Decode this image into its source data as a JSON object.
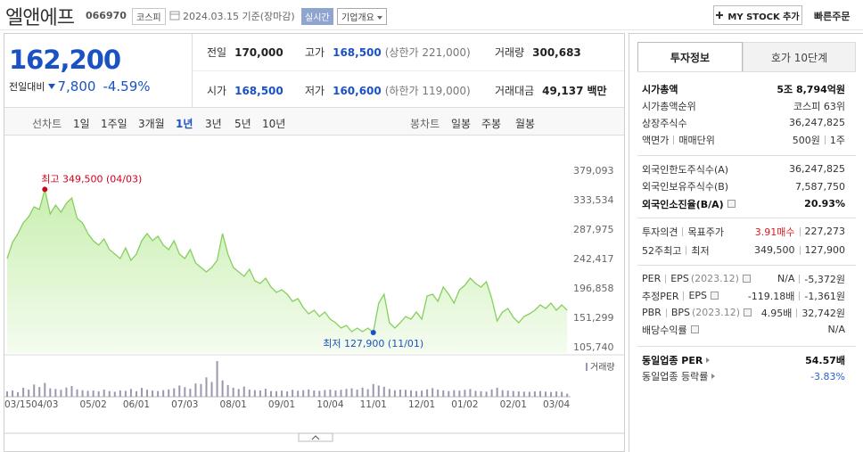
{
  "header": {
    "name": "엘앤에프",
    "code": "066970",
    "market": "코스피",
    "date": "2024.03.15",
    "basis": "기준(장마감)",
    "realtime": "실시간",
    "overview": "기업개요",
    "my_stock": "MY STOCK 추가",
    "quick_order": "빠른주문"
  },
  "quote": {
    "price": "162,200",
    "change_label": "전일대비",
    "change": "7,800",
    "change_rate": "-4.59%",
    "color": "#1a52c4",
    "stats": [
      {
        "label": "전일",
        "value": "170,000"
      },
      {
        "label": "고가",
        "value": "168,500",
        "note": "(상한가 221,000)",
        "color": "#1a52c4"
      },
      {
        "label": "거래량",
        "value": "300,683"
      },
      {
        "label": "시가",
        "value": "168,500",
        "color": "#1a52c4"
      },
      {
        "label": "저가",
        "value": "160,600",
        "note": "(하한가 119,000)",
        "color": "#1a52c4"
      },
      {
        "label": "거래대금",
        "value": "49,137",
        "unit": "백만"
      }
    ]
  },
  "chart_tabs": {
    "line_label": "선차트",
    "periods": [
      "1일",
      "1주일",
      "3개월",
      "1년",
      "3년",
      "5년",
      "10년"
    ],
    "active": 3,
    "candle_label": "봉차트",
    "candle_periods": [
      "일봉",
      "주봉",
      "월봉"
    ]
  },
  "chart_data": {
    "type": "area",
    "color": "#86cf5e",
    "categories": [
      "03/15",
      null,
      null,
      null,
      null,
      null,
      null,
      "04/03",
      null,
      null,
      null,
      null,
      null,
      null,
      null,
      null,
      "05/02",
      null,
      null,
      null,
      null,
      null,
      null,
      null,
      "06/01",
      null,
      null,
      null,
      null,
      null,
      null,
      null,
      null,
      "07/03",
      null,
      null,
      null,
      null,
      null,
      null,
      null,
      null,
      "08/01",
      null,
      null,
      null,
      null,
      null,
      null,
      null,
      null,
      "09/01",
      null,
      null,
      null,
      null,
      null,
      null,
      null,
      null,
      "10/04",
      null,
      null,
      null,
      null,
      null,
      null,
      null,
      "11/01",
      null,
      null,
      null,
      null,
      null,
      null,
      null,
      null,
      "12/01",
      null,
      null,
      null,
      null,
      null,
      null,
      null,
      "01/02",
      null,
      null,
      null,
      null,
      null,
      null,
      null,
      null,
      "02/01",
      null,
      null,
      null,
      null,
      null,
      null,
      null,
      "03/04",
      null,
      null
    ],
    "values": [
      242400,
      267300,
      281100,
      297600,
      307300,
      322500,
      318300,
      349500,
      311400,
      325300,
      314200,
      328000,
      336300,
      304500,
      297600,
      281100,
      270000,
      263100,
      272800,
      256200,
      249300,
      242400,
      259000,
      239700,
      249300,
      270000,
      281100,
      270000,
      276900,
      263100,
      256200,
      270000,
      249300,
      242400,
      256200,
      235500,
      228600,
      221700,
      228600,
      239700,
      281100,
      249300,
      228600,
      221700,
      214800,
      225800,
      207900,
      203800,
      212000,
      198200,
      190000,
      194100,
      187200,
      176100,
      180300,
      166500,
      156800,
      162300,
      152700,
      159600,
      148500,
      143000,
      134700,
      138900,
      129200,
      134700,
      129200,
      134700,
      127900,
      173400,
      187200,
      143000,
      134700,
      143000,
      152700,
      148500,
      159600,
      148500,
      184400,
      187200,
      176100,
      198200,
      187200,
      173400,
      194100,
      201000,
      212000,
      203800,
      198200,
      206500,
      180300,
      145800,
      159600,
      165100,
      151300,
      143000,
      152700,
      156800,
      162300,
      170600,
      165100,
      173400,
      162300,
      170600,
      162200
    ],
    "ylim": [
      105740,
      379093
    ],
    "yticks": [
      {
        "value": 105740,
        "label": "105,740"
      },
      {
        "value": 151299,
        "label": "151,299"
      },
      {
        "value": 196858,
        "label": "196,858"
      },
      {
        "value": 242417,
        "label": "242,417"
      },
      {
        "value": 287975,
        "label": "287,975"
      },
      {
        "value": 333534,
        "label": "333,534"
      },
      {
        "value": 379093,
        "label": "379,093"
      }
    ],
    "grid": false,
    "annotations": [
      {
        "text": "최고 349,500 (04/03)",
        "index": 7,
        "color": "#d0021b"
      },
      {
        "text": "최저 127,900 (11/01)",
        "index": 68,
        "color": "#1a52c4"
      }
    ],
    "volume": {
      "label": "거래량",
      "color": "#9a98b0",
      "values": [
        520000,
        610000,
        450000,
        880000,
        700000,
        1200000,
        950000,
        1350000,
        820000,
        760000,
        680000,
        900000,
        1050000,
        720000,
        640000,
        580000,
        610000,
        530000,
        700000,
        560000,
        490000,
        620000,
        580000,
        760000,
        540000,
        870000,
        690000,
        610000,
        560000,
        650000,
        720000,
        820000,
        1100000,
        940000,
        780000,
        1300000,
        1250000,
        1900000,
        1450000,
        3500000,
        1600000,
        1150000,
        880000,
        760000,
        1000000,
        700000,
        650000,
        620000,
        780000,
        560000,
        540000,
        600000,
        520000,
        680000,
        590000,
        640000,
        720000,
        610000,
        580000,
        660000,
        700000,
        620000,
        680000,
        760000,
        820000,
        700000,
        900000,
        740000,
        1250000,
        1100000,
        980000,
        760000,
        640000,
        700000,
        680000,
        620000,
        560000,
        600000,
        720000,
        840000,
        700000,
        620000,
        560000,
        640000,
        600000,
        680000,
        760000,
        580000,
        540000,
        500000,
        720000,
        880000,
        640000,
        600000,
        560000,
        520000,
        500000,
        480000,
        520000,
        560000,
        500000,
        460000,
        520000,
        480000,
        300683
      ]
    }
  },
  "invest": {
    "tabs": [
      "투자정보",
      "호가 10단계"
    ],
    "sections": [
      [
        {
          "labels": [
            "시가총액"
          ],
          "values": [
            "5조 8,794억원"
          ],
          "bold": true
        },
        {
          "labels": [
            "시가총액순위"
          ],
          "values": [
            "코스피 63위"
          ]
        },
        {
          "labels": [
            "상장주식수"
          ],
          "values": [
            "36,247,825"
          ]
        },
        {
          "labels": [
            "액면가",
            "매매단위"
          ],
          "values": [
            "500원",
            "1주"
          ]
        }
      ],
      [
        {
          "labels": [
            "외국인한도주식수(A)"
          ],
          "values": [
            "36,247,825"
          ]
        },
        {
          "labels": [
            "외국인보유주식수(B)"
          ],
          "values": [
            "7,587,750"
          ]
        },
        {
          "labels": [
            "외국인소진율(B/A)"
          ],
          "values": [
            "20.93%"
          ],
          "bold": true,
          "help": true
        }
      ],
      [
        {
          "labels": [
            "투자의견",
            "목표주가"
          ],
          "values": [
            "3.91매수",
            "227,273"
          ],
          "accent": "#e0191e"
        },
        {
          "labels": [
            "52주최고",
            "최저"
          ],
          "values": [
            "349,500",
            "127,900"
          ]
        }
      ],
      [
        {
          "labels": [
            "PER",
            "EPS"
          ],
          "period": "(2023.12)",
          "values": [
            "N/A",
            "-5,372원"
          ],
          "help": true
        },
        {
          "labels": [
            "추정PER",
            "EPS"
          ],
          "values": [
            "-119.18배",
            "-1,361원"
          ],
          "help": true
        },
        {
          "labels": [
            "PBR",
            "BPS"
          ],
          "period": "(2023.12)",
          "values": [
            "4.95배",
            "32,742원"
          ],
          "help": true
        },
        {
          "labels": [
            "배당수익률"
          ],
          "values": [
            "N/A"
          ],
          "help": true
        }
      ],
      [
        {
          "labels": [
            "동일업종 PER"
          ],
          "values": [
            "54.57배"
          ],
          "bold": true,
          "link": true
        },
        {
          "labels": [
            "동일업종 등락률"
          ],
          "values": [
            "-3.83%"
          ],
          "link": true,
          "accent": "#2a5fd0"
        }
      ]
    ]
  }
}
